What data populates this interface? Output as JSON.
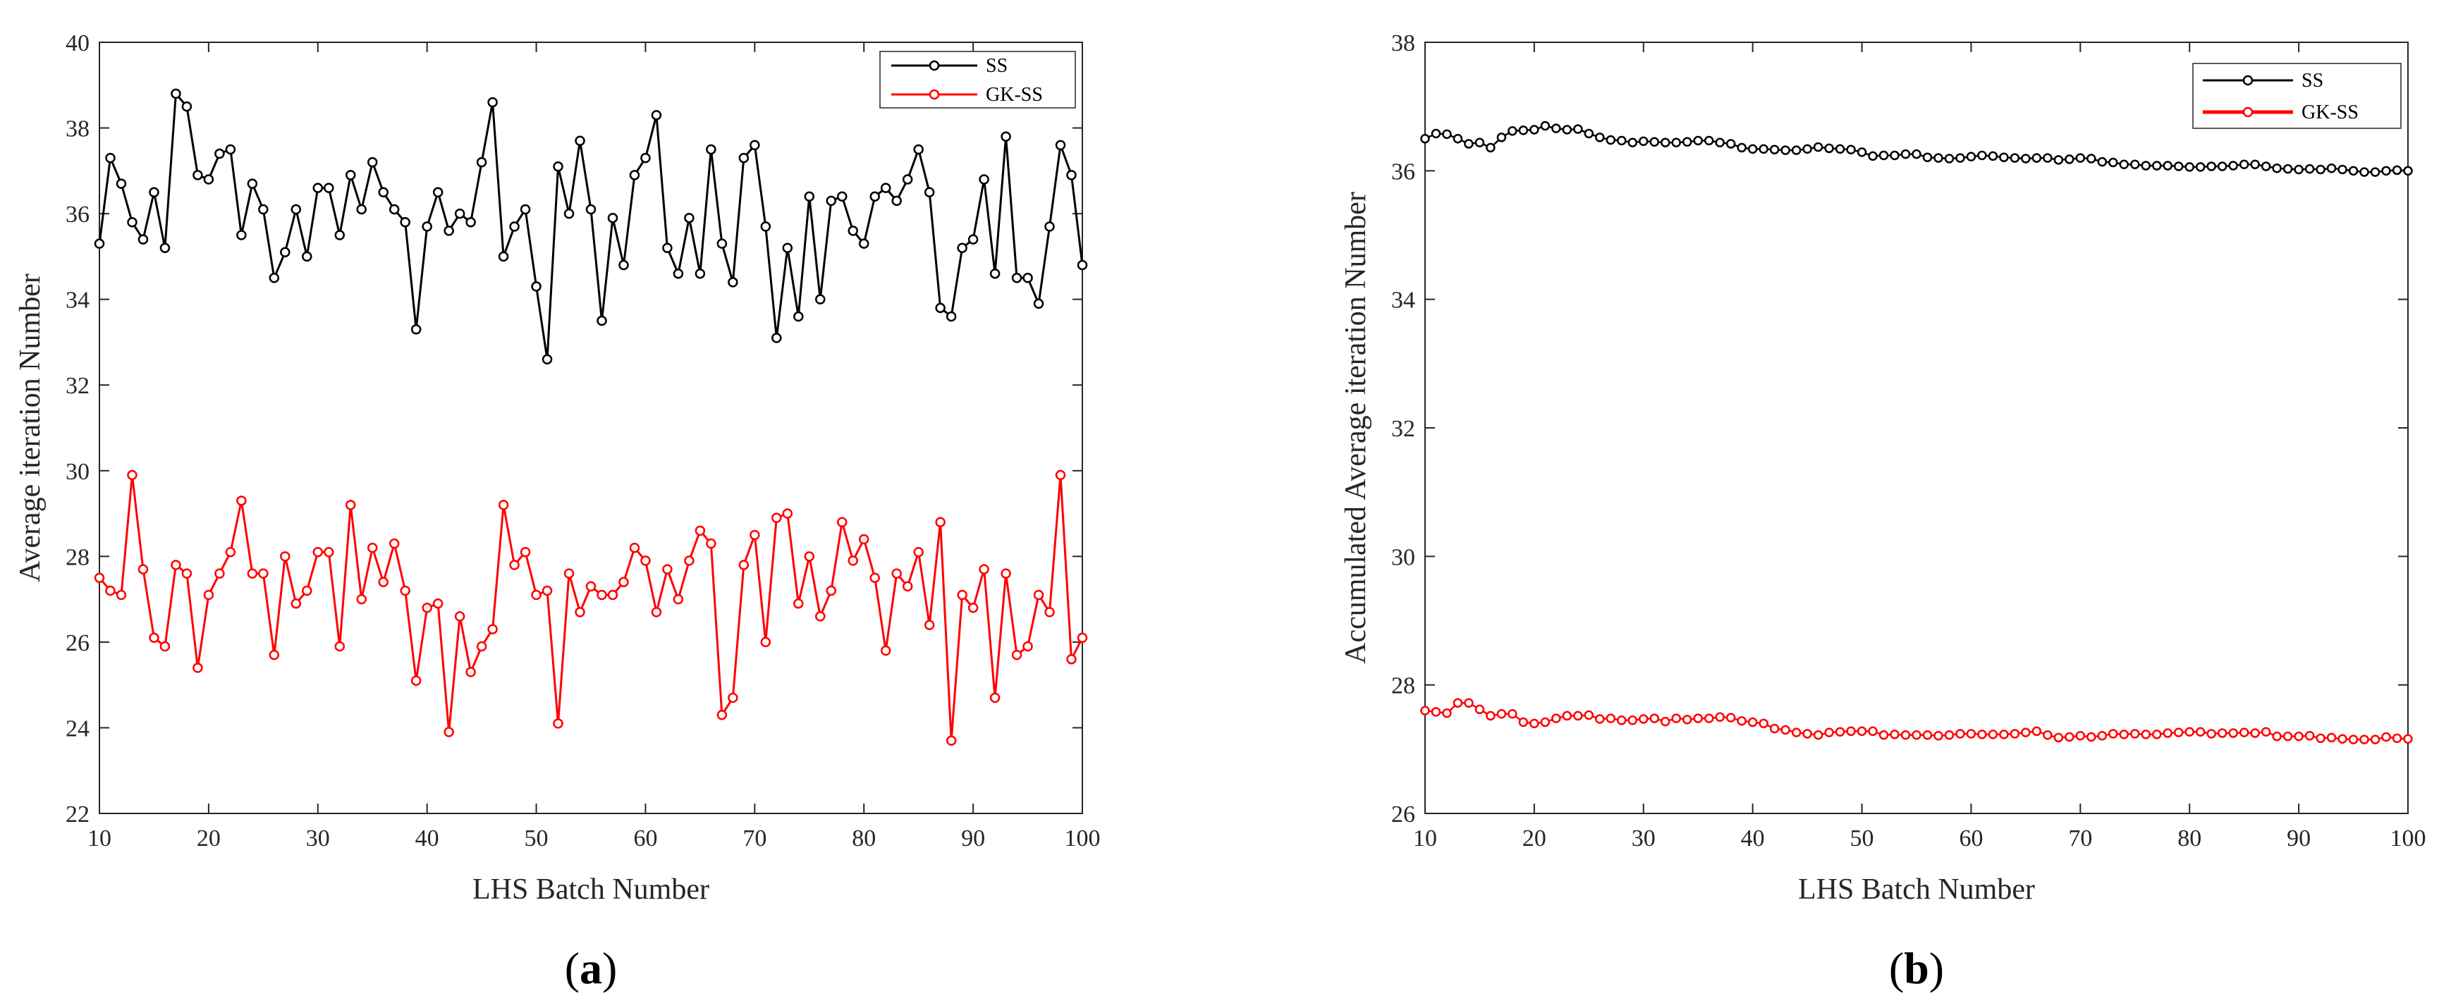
{
  "colors": {
    "ss": "#000000",
    "gkss": "#ff0000",
    "axis": "#262626"
  },
  "chart_data": [
    {
      "type": "line",
      "panel": "(a)",
      "panel_letter": "a",
      "xlabel": "LHS Batch Number",
      "ylabel": "Average iteration Number",
      "xlim": [
        10,
        100
      ],
      "ylim": [
        22,
        40
      ],
      "xticks": [
        10,
        20,
        30,
        40,
        50,
        60,
        70,
        80,
        90,
        100
      ],
      "yticks": [
        22,
        24,
        26,
        28,
        30,
        32,
        34,
        36,
        38,
        40
      ],
      "legend_position": "top-right",
      "x_start": 10,
      "series": [
        {
          "name": "SS",
          "color": "#000000",
          "values": [
            35.3,
            37.3,
            36.7,
            35.8,
            35.4,
            36.5,
            35.2,
            38.8,
            38.5,
            36.9,
            36.8,
            37.4,
            37.5,
            35.5,
            36.7,
            36.1,
            34.5,
            35.1,
            36.1,
            35.0,
            36.6,
            36.6,
            35.5,
            36.9,
            36.1,
            37.2,
            36.5,
            36.1,
            35.8,
            33.3,
            35.7,
            36.5,
            35.6,
            36.0,
            35.8,
            37.2,
            38.6,
            35.0,
            35.7,
            36.1,
            34.3,
            32.6,
            37.1,
            36.0,
            37.7,
            36.1,
            33.5,
            35.9,
            34.8,
            36.9,
            37.3,
            38.3,
            35.2,
            34.6,
            35.9,
            34.6,
            37.5,
            35.3,
            34.4,
            37.3,
            37.6,
            35.7,
            33.1,
            35.2,
            33.6,
            36.4,
            34.0,
            36.3,
            36.4,
            35.6,
            35.3,
            36.4,
            36.6,
            36.3,
            36.8,
            37.5,
            36.5,
            33.8,
            33.6,
            35.2,
            35.4,
            36.8,
            34.6,
            37.8,
            34.5,
            34.5,
            33.9,
            35.7,
            37.6,
            36.9,
            34.8
          ]
        },
        {
          "name": "GK-SS",
          "color": "#ff0000",
          "values": [
            27.5,
            27.2,
            27.1,
            29.9,
            27.7,
            26.1,
            25.9,
            27.8,
            27.6,
            25.4,
            27.1,
            27.6,
            28.1,
            29.3,
            27.6,
            27.6,
            25.7,
            28.0,
            26.9,
            27.2,
            28.1,
            28.1,
            25.9,
            29.2,
            27.0,
            28.2,
            27.4,
            28.3,
            27.2,
            25.1,
            26.8,
            26.9,
            23.9,
            26.6,
            25.3,
            25.9,
            26.3,
            29.2,
            27.8,
            28.1,
            27.1,
            27.2,
            24.1,
            27.6,
            26.7,
            27.3,
            27.1,
            27.1,
            27.4,
            28.2,
            27.9,
            26.7,
            27.7,
            27.0,
            27.9,
            28.6,
            28.3,
            24.3,
            24.7,
            27.8,
            28.5,
            26.0,
            28.9,
            29.0,
            26.9,
            28.0,
            26.6,
            27.2,
            28.8,
            27.9,
            28.4,
            27.5,
            25.8,
            27.6,
            27.3,
            28.1,
            26.4,
            28.8,
            23.7,
            27.1,
            26.8,
            27.7,
            24.7,
            27.6,
            25.7,
            25.9,
            27.1,
            26.7,
            29.9,
            25.6,
            26.1
          ]
        }
      ]
    },
    {
      "type": "line",
      "panel": "(b)",
      "panel_letter": "b",
      "xlabel": "LHS Batch Number",
      "ylabel": "Accumulated Average iteration Number",
      "xlim": [
        10,
        100
      ],
      "ylim": [
        26,
        38
      ],
      "xticks": [
        10,
        20,
        30,
        40,
        50,
        60,
        70,
        80,
        90,
        100
      ],
      "yticks": [
        26,
        28,
        30,
        32,
        34,
        36,
        38
      ],
      "legend_position": "top-right",
      "x_start": 10,
      "series": [
        {
          "name": "SS",
          "color": "#000000",
          "values": [
            36.5,
            36.58,
            36.57,
            36.5,
            36.42,
            36.44,
            36.36,
            36.52,
            36.62,
            36.63,
            36.64,
            36.7,
            36.66,
            36.64,
            36.65,
            36.58,
            36.52,
            36.48,
            36.47,
            36.44,
            36.46,
            36.45,
            36.44,
            36.44,
            36.45,
            36.47,
            36.47,
            36.44,
            36.42,
            36.36,
            36.34,
            36.34,
            36.33,
            36.32,
            36.32,
            36.34,
            36.37,
            36.35,
            36.34,
            36.33,
            36.29,
            36.23,
            36.24,
            36.24,
            36.26,
            36.26,
            36.21,
            36.2,
            36.19,
            36.2,
            36.22,
            36.24,
            36.23,
            36.21,
            36.2,
            36.19,
            36.2,
            36.2,
            36.17,
            36.18,
            36.2,
            36.19,
            36.14,
            36.13,
            36.1,
            36.1,
            36.08,
            36.08,
            36.08,
            36.07,
            36.06,
            36.06,
            36.07,
            36.07,
            36.08,
            36.1,
            36.1,
            36.07,
            36.04,
            36.03,
            36.02,
            36.03,
            36.02,
            36.04,
            36.02,
            36.0,
            35.98,
            35.98,
            36.0,
            36.01,
            36.0
          ]
        },
        {
          "name": "GK-SS",
          "color": "#ff0000",
          "values": [
            27.6,
            27.58,
            27.56,
            27.72,
            27.72,
            27.62,
            27.52,
            27.55,
            27.55,
            27.42,
            27.4,
            27.42,
            27.48,
            27.52,
            27.52,
            27.53,
            27.47,
            27.48,
            27.45,
            27.45,
            27.47,
            27.48,
            27.43,
            27.48,
            27.46,
            27.48,
            27.48,
            27.5,
            27.49,
            27.44,
            27.42,
            27.4,
            27.32,
            27.3,
            27.26,
            27.24,
            27.22,
            27.26,
            27.27,
            27.28,
            27.28,
            27.28,
            27.22,
            27.23,
            27.22,
            27.22,
            27.22,
            27.21,
            27.22,
            27.24,
            27.24,
            27.23,
            27.23,
            27.23,
            27.24,
            27.26,
            27.28,
            27.22,
            27.18,
            27.19,
            27.21,
            27.19,
            27.21,
            27.24,
            27.23,
            27.24,
            27.23,
            27.23,
            27.25,
            27.26,
            27.27,
            27.27,
            27.24,
            27.25,
            27.25,
            27.26,
            27.25,
            27.27,
            27.2,
            27.2,
            27.2,
            27.21,
            27.17,
            27.18,
            27.16,
            27.15,
            27.15,
            27.15,
            27.19,
            27.17,
            27.16
          ]
        }
      ]
    }
  ]
}
